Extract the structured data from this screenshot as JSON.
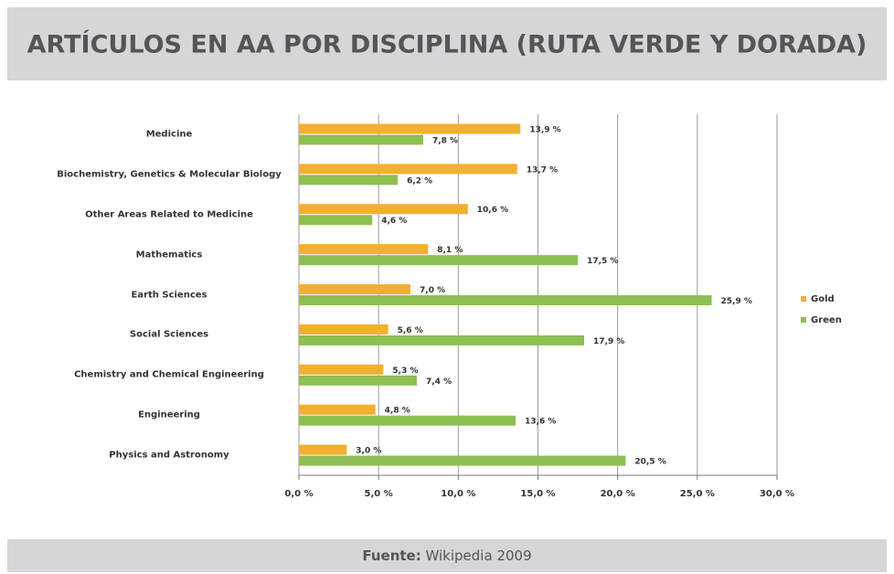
{
  "chart_data": {
    "type": "bar",
    "orientation": "horizontal",
    "title": "ARTÍCULOS EN AA POR DISCIPLINA (RUTA VERDE Y DORADA)",
    "categories": [
      "Medicine",
      "Biochemistry, Genetics & Molecular Biology",
      "Other Areas Related to Medicine",
      "Mathematics",
      "Earth Sciences",
      "Social Sciences",
      "Chemistry and Chemical Engineering",
      "Engineering",
      "Physics and Astronomy"
    ],
    "series": [
      {
        "name": "Gold",
        "color": "#f2b02e",
        "values": [
          13.9,
          13.7,
          10.6,
          8.1,
          7.0,
          5.6,
          5.3,
          4.8,
          3.0
        ],
        "value_labels": [
          "13,9 %",
          "13,7 %",
          "10,6 %",
          "8,1 %",
          "7,0 %",
          "5,6 %",
          "5,3 %",
          "4,8 %",
          "3,0 %"
        ]
      },
      {
        "name": "Green",
        "color": "#8dbf52",
        "values": [
          7.8,
          6.2,
          4.6,
          17.5,
          25.9,
          17.9,
          7.4,
          13.6,
          20.5
        ],
        "value_labels": [
          "7,8 %",
          "6,2 %",
          "4,6 %",
          "17,5 %",
          "25,9 %",
          "17,9 %",
          "7,4 %",
          "13,6 %",
          "20,5 %"
        ]
      }
    ],
    "xlim": [
      0,
      30
    ],
    "xticks": [
      {
        "value": 0,
        "label": "0,0 %"
      },
      {
        "value": 5,
        "label": "5,0 %"
      },
      {
        "value": 10,
        "label": "10,0 %"
      },
      {
        "value": 15,
        "label": "15,0 %"
      },
      {
        "value": 20,
        "label": "20,0 %"
      },
      {
        "value": 25,
        "label": "25,0 %"
      },
      {
        "value": 30,
        "label": "30,0 %"
      }
    ],
    "grid": true,
    "legend": "right"
  },
  "footer": {
    "source_label": "Fuente:",
    "source_text": "Wikipedia 2009"
  }
}
